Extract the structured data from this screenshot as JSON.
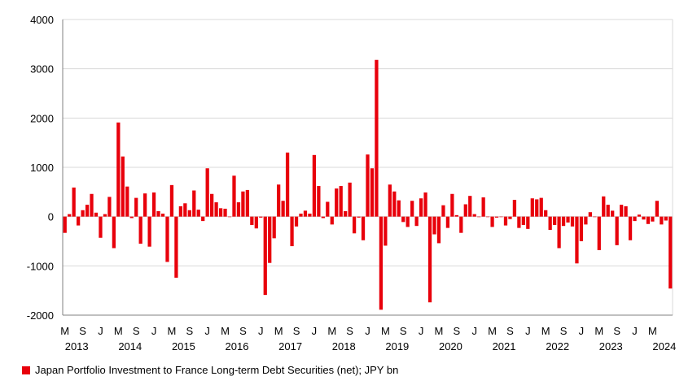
{
  "chart_data": {
    "type": "bar",
    "ylim": [
      -2000,
      4000
    ],
    "yticks": [
      -2000,
      -1000,
      0,
      1000,
      2000,
      3000,
      4000
    ],
    "grid": true,
    "legend_position": "bottom-left",
    "series": [
      {
        "name": "Japan Portfolio Investment to France Long-term Debt Securities (net); JPY bn",
        "color": "#e8000b",
        "start_month": "2013-03",
        "values": [
          -330,
          50,
          590,
          -180,
          130,
          240,
          460,
          80,
          -430,
          50,
          400,
          -640,
          1910,
          1220,
          610,
          -30,
          380,
          -550,
          470,
          -610,
          490,
          110,
          60,
          -920,
          640,
          -1240,
          210,
          270,
          130,
          530,
          140,
          -90,
          980,
          460,
          290,
          170,
          160,
          0,
          830,
          290,
          510,
          540,
          -170,
          -240,
          -20,
          -1590,
          -940,
          -440,
          650,
          320,
          1300,
          -600,
          -200,
          60,
          120,
          60,
          1250,
          620,
          -30,
          300,
          -160,
          570,
          620,
          110,
          690,
          -340,
          -20,
          -480,
          1260,
          980,
          3180,
          -1890,
          -590,
          650,
          510,
          330,
          -110,
          -210,
          320,
          -190,
          370,
          490,
          -1740,
          -360,
          -540,
          230,
          -230,
          460,
          30,
          -330,
          250,
          420,
          50,
          0,
          390,
          0,
          -210,
          -20,
          0,
          -180,
          -50,
          340,
          -230,
          -170,
          -250,
          370,
          350,
          380,
          130,
          -270,
          -170,
          -640,
          -190,
          -120,
          -200,
          -950,
          -500,
          -160,
          90,
          0,
          -680,
          410,
          240,
          120,
          -580,
          240,
          210,
          -480,
          -90,
          40,
          -60,
          -150,
          -100,
          320,
          -160,
          -80,
          -1460
        ]
      }
    ],
    "x_tick_labels": [
      "M",
      "S",
      "J",
      "M",
      "S",
      "J",
      "M",
      "S",
      "J",
      "M",
      "S",
      "J",
      "M",
      "S",
      "J",
      "M",
      "S",
      "J",
      "M",
      "S",
      "J",
      "M",
      "S",
      "J",
      "M",
      "S",
      "J",
      "M",
      "S",
      "J",
      "M",
      "S",
      "J",
      "M"
    ],
    "year_labels": [
      "2013",
      "2014",
      "2015",
      "2016",
      "2017",
      "2018",
      "2019",
      "2020",
      "2021",
      "2022",
      "2023",
      "2024"
    ]
  }
}
